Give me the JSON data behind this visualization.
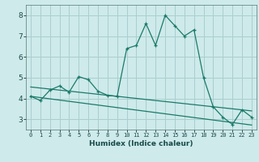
{
  "x": [
    0,
    1,
    2,
    3,
    4,
    5,
    6,
    7,
    8,
    9,
    10,
    11,
    12,
    13,
    14,
    15,
    16,
    17,
    18,
    19,
    20,
    21,
    22,
    23
  ],
  "y_main": [
    4.1,
    3.9,
    4.4,
    4.6,
    4.3,
    5.05,
    4.9,
    4.35,
    4.15,
    4.1,
    6.4,
    6.55,
    7.6,
    6.55,
    8.0,
    7.5,
    7.0,
    7.3,
    5.0,
    3.6,
    3.1,
    2.75,
    3.45,
    3.1
  ],
  "y_reg1": [
    4.55,
    4.5,
    4.45,
    4.4,
    4.35,
    4.3,
    4.25,
    4.2,
    4.15,
    4.1,
    4.05,
    4.0,
    3.95,
    3.9,
    3.85,
    3.8,
    3.75,
    3.7,
    3.65,
    3.6,
    3.55,
    3.5,
    3.45,
    3.4
  ],
  "y_reg2": [
    4.1,
    4.04,
    3.98,
    3.92,
    3.86,
    3.8,
    3.74,
    3.68,
    3.62,
    3.56,
    3.5,
    3.44,
    3.38,
    3.32,
    3.26,
    3.2,
    3.14,
    3.08,
    3.02,
    2.96,
    2.9,
    2.84,
    2.78,
    2.72
  ],
  "line_color": "#1a7a6a",
  "bg_color": "#ceeaea",
  "grid_color": "#aacece",
  "ylabel_vals": [
    3,
    4,
    5,
    6,
    7,
    8
  ],
  "xlabel_vals": [
    0,
    1,
    2,
    3,
    4,
    5,
    6,
    7,
    8,
    9,
    10,
    11,
    12,
    13,
    14,
    15,
    16,
    17,
    18,
    19,
    20,
    21,
    22,
    23
  ],
  "xlabel_label": "Humidex (Indice chaleur)",
  "ylim": [
    2.5,
    8.5
  ],
  "xlim": [
    -0.5,
    23.5
  ]
}
